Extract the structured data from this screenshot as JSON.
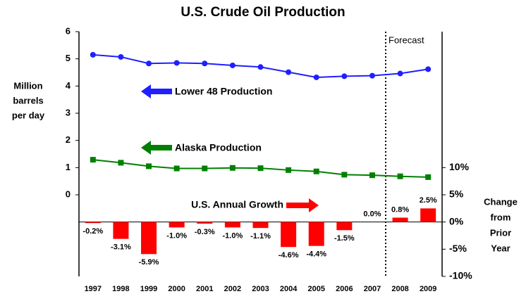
{
  "chart_data": {
    "type": "line",
    "title": "U.S. Crude Oil Production",
    "y_label": [
      "Million",
      "barrels",
      "per day"
    ],
    "y2_label": [
      "Change",
      "from",
      "Prior",
      "Year"
    ],
    "annotations": [
      "Lower 48 Production",
      "Alaska Production",
      "U.S. Annual Growth",
      "Forecast"
    ],
    "categories": [
      "1997",
      "1998",
      "1999",
      "2000",
      "2001",
      "2002",
      "2003",
      "2004",
      "2005",
      "2006",
      "2007",
      "2008",
      "2009"
    ],
    "series": [
      {
        "name": "Lower 48 Production",
        "type": "line",
        "color": "#1f1fff",
        "values": [
          5.15,
          5.07,
          4.83,
          4.85,
          4.83,
          4.76,
          4.7,
          4.51,
          4.32,
          4.36,
          4.38,
          4.46,
          4.62
        ]
      },
      {
        "name": "Alaska Production",
        "type": "line",
        "color": "#008000",
        "values": [
          1.29,
          1.18,
          1.05,
          0.97,
          0.97,
          0.99,
          0.98,
          0.91,
          0.86,
          0.74,
          0.72,
          0.68,
          0.65
        ]
      },
      {
        "name": "U.S. Annual Growth",
        "type": "bar",
        "axis": "y2",
        "color": "#ff0000",
        "values": [
          -0.2,
          -3.1,
          -5.9,
          -1.0,
          -0.3,
          -1.0,
          -1.1,
          -4.6,
          -4.4,
          -1.5,
          0.0,
          0.8,
          2.5
        ],
        "value_labels": [
          "-0.2%",
          "-3.1%",
          "-5.9%",
          "-1.0%",
          "-0.3%",
          "-1.0%",
          "-1.1%",
          "-4.6%",
          "-4.4%",
          "-1.5%",
          "0.0%",
          "0.8%",
          "2.5%"
        ]
      }
    ],
    "ylim": [
      -3,
      6
    ],
    "yticks": [
      0,
      1,
      2,
      3,
      4,
      5,
      6
    ],
    "y2lim": [
      -10,
      35
    ],
    "y2ticks": [
      {
        "value": -10,
        "label": "-10%"
      },
      {
        "value": -5,
        "label": "-5%"
      },
      {
        "value": 0,
        "label": "0%"
      },
      {
        "value": 5,
        "label": "5%"
      },
      {
        "value": 10,
        "label": "10%"
      }
    ]
  }
}
